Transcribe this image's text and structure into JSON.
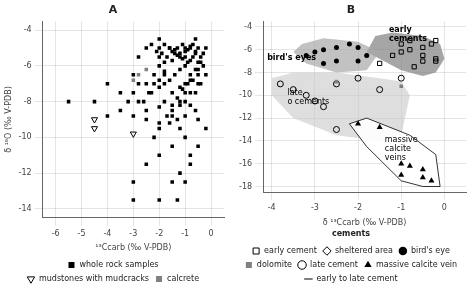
{
  "chart_data": [
    {
      "type": "scatter",
      "title": "A",
      "xlabel": "¹³Ccarb (‰ V-PDB)",
      "ylabel": "δ ¹⁸O (‰ V-PDB)",
      "xlim": [
        -6.5,
        0.5
      ],
      "ylim": [
        -14.5,
        -3.5
      ],
      "xticks": [
        -6,
        -5,
        -4,
        -3,
        -2,
        -1,
        0
      ],
      "yticks": [
        -14,
        -12,
        -10,
        -8,
        -6,
        -4
      ],
      "grid": true,
      "series": [
        {
          "name": "whole rock samples",
          "color": "#000000",
          "marker": "square",
          "values": [
            [
              -0.5,
              -5.0
            ],
            [
              -0.6,
              -5.2
            ],
            [
              -0.8,
              -4.9
            ],
            [
              -0.9,
              -5.1
            ],
            [
              -1.0,
              -5.0
            ],
            [
              -1.1,
              -4.8
            ],
            [
              -1.2,
              -5.3
            ],
            [
              -1.3,
              -5.0
            ],
            [
              -0.7,
              -5.5
            ],
            [
              -1.4,
              -5.1
            ],
            [
              -0.5,
              -5.8
            ],
            [
              -0.8,
              -5.7
            ],
            [
              -1.0,
              -5.5
            ],
            [
              -1.1,
              -5.6
            ],
            [
              -0.9,
              -5.8
            ],
            [
              -1.5,
              -5.2
            ],
            [
              -1.6,
              -5.0
            ],
            [
              -1.3,
              -5.4
            ],
            [
              -0.6,
              -4.5
            ],
            [
              -0.7,
              -4.8
            ],
            [
              -1.7,
              -5.5
            ],
            [
              -1.8,
              -5.8
            ],
            [
              -1.9,
              -5.3
            ],
            [
              -2.0,
              -5.0
            ],
            [
              -2.1,
              -5.2
            ],
            [
              -2.0,
              -5.5
            ],
            [
              -1.5,
              -5.7
            ],
            [
              -0.5,
              -6.2
            ],
            [
              -0.8,
              -6.5
            ],
            [
              -1.0,
              -6.0
            ],
            [
              -1.2,
              -6.2
            ],
            [
              -1.4,
              -6.5
            ],
            [
              -1.6,
              -6.8
            ],
            [
              -1.8,
              -6.3
            ],
            [
              -2.0,
              -6.0
            ],
            [
              -2.2,
              -6.5
            ],
            [
              -1.0,
              -7.0
            ],
            [
              -1.2,
              -7.2
            ],
            [
              -1.5,
              -7.5
            ],
            [
              -1.8,
              -7.0
            ],
            [
              -2.0,
              -7.2
            ],
            [
              -2.3,
              -7.5
            ],
            [
              -2.5,
              -7.0
            ],
            [
              -0.8,
              -7.5
            ],
            [
              -0.5,
              -7.0
            ],
            [
              -1.0,
              -8.0
            ],
            [
              -1.2,
              -8.2
            ],
            [
              -1.5,
              -8.5
            ],
            [
              -1.8,
              -8.0
            ],
            [
              -2.0,
              -8.3
            ],
            [
              -2.5,
              -8.5
            ],
            [
              -2.8,
              -8.0
            ],
            [
              -0.6,
              -8.5
            ],
            [
              -1.3,
              -9.0
            ],
            [
              -1.6,
              -9.2
            ],
            [
              -2.0,
              -9.5
            ],
            [
              -2.5,
              -9.0
            ],
            [
              -3.0,
              -8.8
            ],
            [
              -0.5,
              -9.0
            ],
            [
              -1.0,
              -10.0
            ],
            [
              -1.5,
              -10.5
            ],
            [
              -2.0,
              -11.0
            ],
            [
              -2.5,
              -11.5
            ],
            [
              -0.8,
              -11.0
            ],
            [
              -1.2,
              -12.0
            ],
            [
              -1.5,
              -12.5
            ],
            [
              -3.0,
              -12.5
            ],
            [
              -4.5,
              -8.0
            ],
            [
              -5.5,
              -8.0
            ],
            [
              -4.0,
              -7.0
            ],
            [
              -3.5,
              -7.5
            ],
            [
              -3.0,
              -6.5
            ],
            [
              -2.8,
              -5.5
            ],
            [
              -2.5,
              -5.0
            ],
            [
              -2.3,
              -4.8
            ],
            [
              -2.0,
              -4.5
            ],
            [
              -1.8,
              -4.8
            ],
            [
              -1.6,
              -5.0
            ],
            [
              -1.4,
              -5.3
            ],
            [
              -1.2,
              -5.5
            ],
            [
              -1.0,
              -5.2
            ],
            [
              -0.8,
              -5.0
            ],
            [
              -0.6,
              -5.3
            ],
            [
              -0.4,
              -5.5
            ],
            [
              -0.2,
              -5.0
            ],
            [
              -0.3,
              -6.0
            ],
            [
              -0.5,
              -6.5
            ],
            [
              -0.7,
              -6.8
            ],
            [
              -0.9,
              -7.0
            ],
            [
              -1.1,
              -7.3
            ],
            [
              -1.3,
              -7.8
            ],
            [
              -1.5,
              -8.2
            ],
            [
              -1.7,
              -8.8
            ],
            [
              -2.0,
              -9.2
            ],
            [
              -2.2,
              -10.0
            ],
            [
              -1.8,
              -6.5
            ],
            [
              -2.0,
              -6.8
            ],
            [
              -2.2,
              -7.0
            ],
            [
              -2.4,
              -7.5
            ],
            [
              -2.6,
              -8.0
            ],
            [
              -2.8,
              -7.0
            ],
            [
              -3.0,
              -7.5
            ],
            [
              -3.2,
              -8.0
            ],
            [
              -3.5,
              -8.5
            ],
            [
              -4.0,
              -8.8
            ],
            [
              -0.3,
              -5.3
            ],
            [
              -0.4,
              -5.8
            ],
            [
              -0.6,
              -6.2
            ],
            [
              -0.8,
              -6.8
            ],
            [
              -1.0,
              -7.5
            ],
            [
              -1.2,
              -8.0
            ],
            [
              -1.5,
              -8.8
            ],
            [
              -0.2,
              -6.5
            ],
            [
              -0.4,
              -7.0
            ],
            [
              -0.6,
              -7.5
            ],
            [
              -0.8,
              -8.2
            ],
            [
              -1.0,
              -8.8
            ],
            [
              -1.2,
              -9.5
            ],
            [
              -0.2,
              -9.5
            ],
            [
              -0.5,
              -10.5
            ],
            [
              -0.8,
              -11.5
            ],
            [
              -1.0,
              -12.5
            ],
            [
              -1.3,
              -13.5
            ],
            [
              -2.0,
              -13.5
            ],
            [
              -3.0,
              -13.5
            ]
          ]
        },
        {
          "name": "mudstones with mudcracks",
          "color": "#000000",
          "marker": "triangle_down_open",
          "values": [
            [
              -4.5,
              -9.0
            ],
            [
              -4.5,
              -9.5
            ],
            [
              -3.0,
              -9.8
            ]
          ]
        },
        {
          "name": "calcrete",
          "color": "#808080",
          "marker": "square",
          "values": [
            [
              -2.5,
              -6.2
            ],
            [
              -2.8,
              -6.5
            ],
            [
              -3.0,
              -6.8
            ]
          ]
        }
      ]
    },
    {
      "type": "scatter",
      "title": "B",
      "xlabel": "δ ¹³Ccarb (‰ V-PDB)",
      "xlim": [
        -4.2,
        0.5
      ],
      "ylim": [
        -18.5,
        -3.5
      ],
      "xticks": [
        -4,
        -3,
        -2,
        -1,
        0
      ],
      "yticks": [
        -18,
        -16,
        -14,
        -12,
        -10,
        -8,
        -6,
        -4
      ],
      "grid": true,
      "legend_title": "cements",
      "regions": [
        {
          "color": "#808080",
          "x": [
            -1.6,
            -1.2,
            -0.5,
            -0.1,
            0.0,
            -0.2,
            -0.5,
            -1.0,
            -1.8,
            -1.6
          ],
          "y": [
            -4.8,
            -4.5,
            -4.8,
            -5.5,
            -6.8,
            -8.0,
            -8.3,
            -7.8,
            -6.2,
            -4.8
          ]
        },
        {
          "color": "#a8a8a8",
          "x": [
            -3.3,
            -2.8,
            -2.0,
            -1.5,
            -1.8,
            -2.5,
            -3.2,
            -3.5,
            -3.3
          ],
          "y": [
            -5.5,
            -5.0,
            -5.3,
            -6.2,
            -7.8,
            -8.0,
            -7.2,
            -6.2,
            -5.5
          ]
        },
        {
          "color": "#c8c8c8",
          "x": [
            -4.0,
            -3.5,
            -2.5,
            -1.5,
            -1.0,
            -0.8,
            -1.0,
            -1.5,
            -2.5,
            -3.5,
            -4.0,
            -4.0
          ],
          "y": [
            -8.5,
            -8.0,
            -8.0,
            -8.5,
            -8.8,
            -10.0,
            -13.5,
            -14.0,
            -13.5,
            -12.0,
            -10.0,
            -8.5
          ]
        },
        {
          "color": "#ffffff",
          "x": [
            -2.2,
            -1.8,
            -0.8,
            -0.2,
            -0.1,
            -0.5,
            -1.0,
            -1.8,
            -2.2
          ],
          "y": [
            -12.5,
            -12.0,
            -13.5,
            -15.2,
            -18.0,
            -18.0,
            -17.5,
            -14.5,
            -12.5
          ]
        }
      ],
      "annotations": [
        "early\ncements",
        "bird's eyes",
        "late\no cements",
        "massive\ncalcite\nveins"
      ],
      "series": [
        {
          "name": "early cement",
          "color": "#000000",
          "marker": "square_open",
          "values": [
            [
              -0.2,
              -5.2
            ],
            [
              -0.3,
              -5.5
            ],
            [
              -0.5,
              -5.8
            ],
            [
              -0.8,
              -6.0
            ],
            [
              -1.0,
              -6.2
            ],
            [
              -1.2,
              -6.5
            ],
            [
              -0.5,
              -7.0
            ],
            [
              -0.2,
              -6.8
            ],
            [
              -1.5,
              -7.2
            ],
            [
              -1.0,
              -5.5
            ],
            [
              -0.8,
              -5.2
            ],
            [
              -0.5,
              -6.5
            ],
            [
              -0.7,
              -7.5
            ],
            [
              -0.2,
              -7.0
            ]
          ]
        },
        {
          "name": "sheltered area",
          "color": "#000000",
          "marker": "diamond_open",
          "values": []
        },
        {
          "name": "bird's eye",
          "color": "#000000",
          "marker": "circle",
          "values": [
            [
              -2.8,
              -6.0
            ],
            [
              -3.0,
              -6.2
            ],
            [
              -3.2,
              -6.5
            ],
            [
              -2.5,
              -5.8
            ],
            [
              -2.2,
              -5.5
            ],
            [
              -2.0,
              -5.8
            ],
            [
              -2.5,
              -7.0
            ],
            [
              -2.8,
              -7.2
            ],
            [
              -1.8,
              -6.5
            ],
            [
              -2.0,
              -7.0
            ]
          ]
        },
        {
          "name": "dolomite",
          "color": "#808080",
          "marker": "square",
          "values": [
            [
              -2.5,
              -8.8
            ],
            [
              -1.0,
              -9.2
            ]
          ]
        },
        {
          "name": "late cement",
          "color": "#000000",
          "marker": "circle_open",
          "values": [
            [
              -3.5,
              -9.5
            ],
            [
              -3.2,
              -10.0
            ],
            [
              -3.0,
              -10.5
            ],
            [
              -2.8,
              -11.0
            ],
            [
              -2.5,
              -9.0
            ],
            [
              -2.0,
              -8.5
            ],
            [
              -3.8,
              -9.0
            ],
            [
              -2.5,
              -13.0
            ],
            [
              -1.5,
              -9.5
            ],
            [
              -1.0,
              -8.5
            ]
          ]
        },
        {
          "name": "massive calcite vein",
          "color": "#000000",
          "marker": "triangle",
          "values": [
            [
              -2.0,
              -12.5
            ],
            [
              -1.5,
              -12.8
            ],
            [
              -1.0,
              -16.0
            ],
            [
              -0.8,
              -16.2
            ],
            [
              -0.5,
              -16.5
            ],
            [
              -1.0,
              -17.0
            ],
            [
              -0.5,
              -17.2
            ],
            [
              -0.3,
              -17.5
            ]
          ]
        },
        {
          "name": "early to late cement",
          "color": "#000000",
          "line_style": "solid",
          "values": []
        }
      ]
    }
  ]
}
